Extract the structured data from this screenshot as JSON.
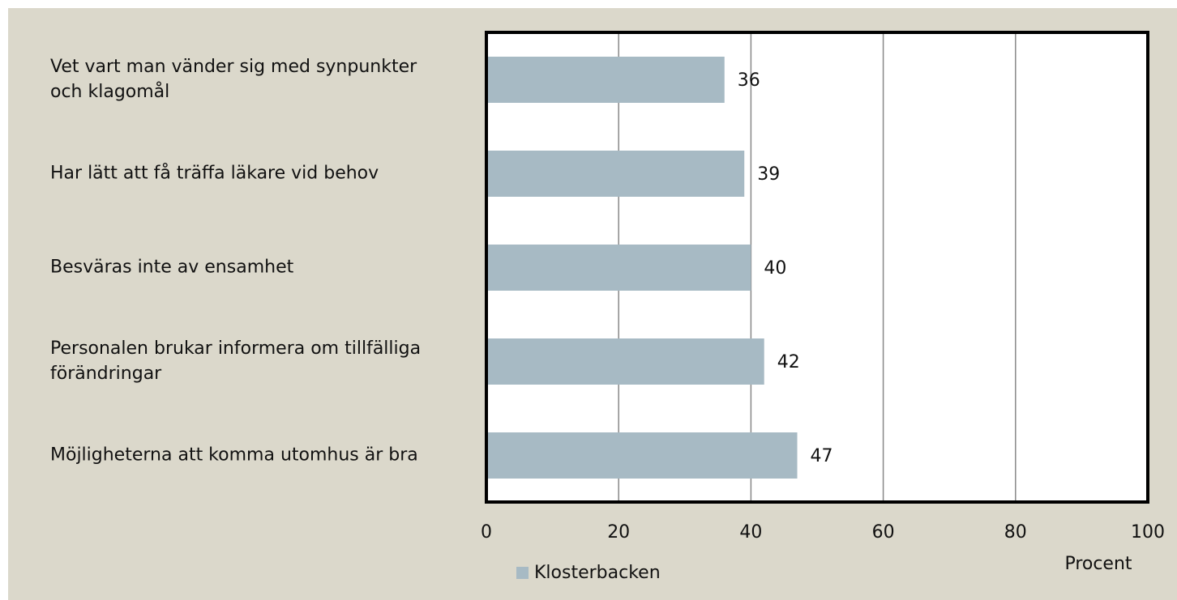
{
  "chart_data": {
    "type": "barh",
    "categories": [
      "Vet vart man vänder sig med synpunkter och klagomål",
      "Har lätt att få träffa läkare vid behov",
      "Besväras inte av ensamhet",
      "Personalen brukar informera om tillfälliga förändringar",
      "Möjligheterna att komma utomhus är bra"
    ],
    "series": [
      {
        "name": "Klosterbacken",
        "color": "#a7bac4",
        "values": [
          36,
          39,
          40,
          42,
          47
        ]
      }
    ],
    "xlim": [
      0,
      100
    ],
    "xticks": [
      0,
      20,
      40,
      60,
      80,
      100
    ],
    "xlabel": "Procent",
    "grid": true,
    "legend": "bottom"
  }
}
